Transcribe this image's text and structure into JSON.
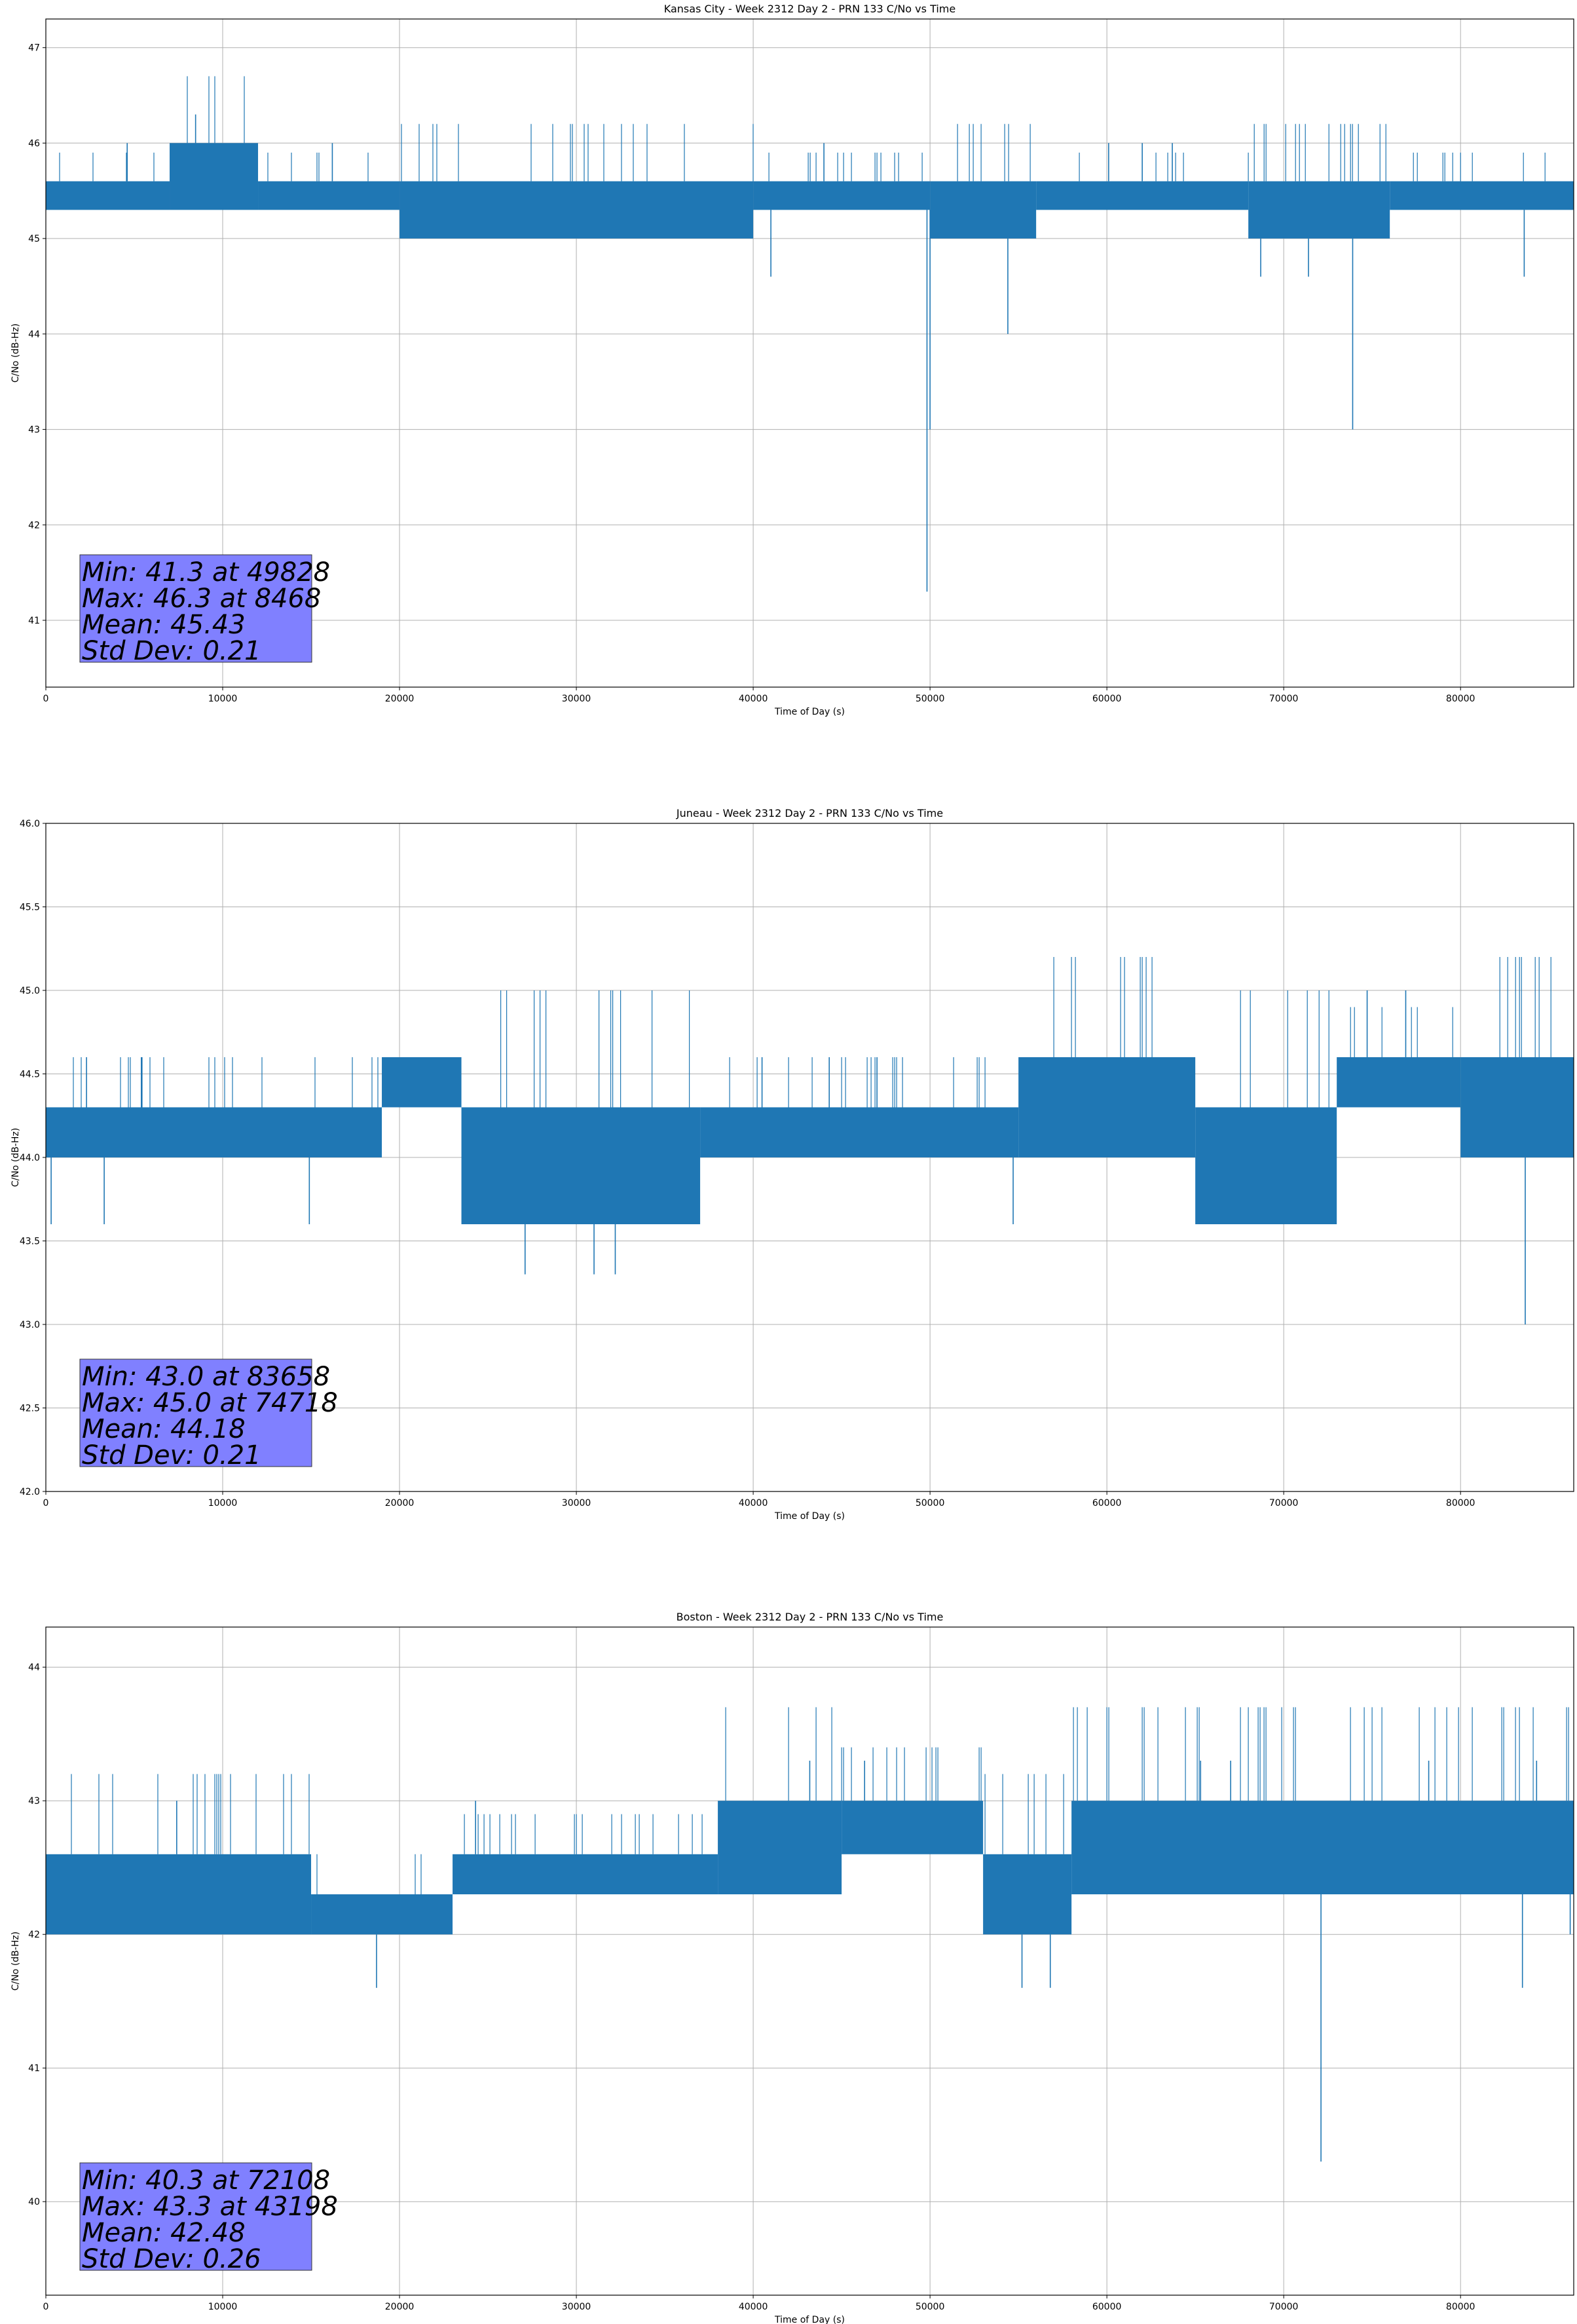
{
  "chart_data": [
    {
      "type": "line",
      "title": "Kansas City - Week 2312 Day 2 - PRN 133 C/No vs Time",
      "xlabel": "Time of Day (s)",
      "ylabel": "C/No (dB-Hz)",
      "xlim": [
        0,
        86400
      ],
      "ylim": [
        40.3,
        47.3
      ],
      "xticks": [
        0,
        10000,
        20000,
        30000,
        40000,
        50000,
        60000,
        70000,
        80000
      ],
      "yticks": [
        41,
        42,
        43,
        44,
        45,
        46,
        47
      ],
      "ytick_format": "0",
      "grid": true,
      "series_color": "#1f77b4",
      "bands": [
        {
          "x": [
            0,
            7000
          ],
          "low": 45.3,
          "high": 45.6
        },
        {
          "x": [
            7000,
            12000
          ],
          "low": 45.3,
          "high": 46.0
        },
        {
          "x": [
            12000,
            20000
          ],
          "low": 45.3,
          "high": 45.6
        },
        {
          "x": [
            20000,
            40000
          ],
          "low": 45.0,
          "high": 45.6
        },
        {
          "x": [
            40000,
            50000
          ],
          "low": 45.3,
          "high": 45.6
        },
        {
          "x": [
            50000,
            56000
          ],
          "low": 45.0,
          "high": 45.6
        },
        {
          "x": [
            56000,
            68000
          ],
          "low": 45.3,
          "high": 45.6
        },
        {
          "x": [
            68000,
            76000
          ],
          "low": 45.0,
          "high": 45.6
        },
        {
          "x": [
            76000,
            86400
          ],
          "low": 45.3,
          "high": 45.6
        }
      ],
      "spikes": [
        {
          "x": 8468,
          "y": 46.3
        },
        {
          "x": 49828,
          "y": 41.3
        },
        {
          "x": 50000,
          "y": 43.0
        },
        {
          "x": 73900,
          "y": 43.0
        },
        {
          "x": 54400,
          "y": 44.0
        },
        {
          "x": 41000,
          "y": 44.6
        },
        {
          "x": 68700,
          "y": 44.6
        },
        {
          "x": 71400,
          "y": 44.6
        },
        {
          "x": 83600,
          "y": 44.6
        },
        {
          "x": 44000,
          "y": 46.0
        },
        {
          "x": 60100,
          "y": 46.0
        },
        {
          "x": 62000,
          "y": 46.0
        },
        {
          "x": 63700,
          "y": 46.0
        },
        {
          "x": 4600,
          "y": 46.0
        },
        {
          "x": 16200,
          "y": 46.0
        }
      ],
      "stats": [
        "Min: 41.3 at 49828",
        "Max: 46.3 at 8468",
        "Mean: 45.43",
        "Std Dev: 0.21"
      ]
    },
    {
      "type": "line",
      "title": "Juneau - Week 2312 Day 2 - PRN 133 C/No vs Time",
      "xlabel": "Time of Day (s)",
      "ylabel": "C/No (dB-Hz)",
      "xlim": [
        0,
        86400
      ],
      "ylim": [
        42.0,
        46.0
      ],
      "xticks": [
        0,
        10000,
        20000,
        30000,
        40000,
        50000,
        60000,
        70000,
        80000
      ],
      "yticks": [
        42.0,
        42.5,
        43.0,
        43.5,
        44.0,
        44.5,
        45.0,
        45.5,
        46.0
      ],
      "ytick_format": "1",
      "grid": true,
      "series_color": "#1f77b4",
      "bands": [
        {
          "x": [
            0,
            19000
          ],
          "low": 44.0,
          "high": 44.3
        },
        {
          "x": [
            19000,
            23500
          ],
          "low": 44.3,
          "high": 44.6
        },
        {
          "x": [
            23500,
            37000
          ],
          "low": 43.6,
          "high": 44.3
        },
        {
          "x": [
            37000,
            55000
          ],
          "low": 44.0,
          "high": 44.3
        },
        {
          "x": [
            55000,
            65000
          ],
          "low": 44.0,
          "high": 44.6
        },
        {
          "x": [
            65000,
            73000
          ],
          "low": 43.6,
          "high": 44.3
        },
        {
          "x": [
            73000,
            80000
          ],
          "low": 44.3,
          "high": 44.6
        },
        {
          "x": [
            80000,
            86400
          ],
          "low": 44.0,
          "high": 44.6
        }
      ],
      "spikes": [
        {
          "x": 83658,
          "y": 43.0
        },
        {
          "x": 74718,
          "y": 45.0
        },
        {
          "x": 76900,
          "y": 45.0
        },
        {
          "x": 27100,
          "y": 43.3
        },
        {
          "x": 31000,
          "y": 43.3
        },
        {
          "x": 32200,
          "y": 43.3
        },
        {
          "x": 300,
          "y": 43.6
        },
        {
          "x": 3300,
          "y": 43.6
        },
        {
          "x": 14900,
          "y": 43.6
        },
        {
          "x": 54700,
          "y": 43.6
        },
        {
          "x": 2300,
          "y": 44.6
        },
        {
          "x": 5400,
          "y": 44.6
        },
        {
          "x": 40500,
          "y": 44.6
        },
        {
          "x": 44300,
          "y": 44.6
        },
        {
          "x": 47000,
          "y": 44.6
        }
      ],
      "stats": [
        "Min: 43.0 at 83658",
        "Max: 45.0 at 74718",
        "Mean: 44.18",
        "Std Dev: 0.21"
      ]
    },
    {
      "type": "line",
      "title": "Boston - Week 2312 Day 2 - PRN 133 C/No vs Time",
      "xlabel": "Time of Day (s)",
      "ylabel": "C/No (dB-Hz)",
      "xlim": [
        0,
        86400
      ],
      "ylim": [
        39.3,
        44.3
      ],
      "xticks": [
        0,
        10000,
        20000,
        30000,
        40000,
        50000,
        60000,
        70000,
        80000
      ],
      "yticks": [
        40,
        41,
        42,
        43,
        44
      ],
      "ytick_format": "0",
      "grid": true,
      "series_color": "#1f77b4",
      "bands": [
        {
          "x": [
            0,
            15000
          ],
          "low": 42.0,
          "high": 42.6
        },
        {
          "x": [
            15000,
            23000
          ],
          "low": 42.0,
          "high": 42.3
        },
        {
          "x": [
            23000,
            38000
          ],
          "low": 42.3,
          "high": 42.6
        },
        {
          "x": [
            38000,
            45000
          ],
          "low": 42.3,
          "high": 43.0
        },
        {
          "x": 45000,
          "low": 42.6,
          "high": 43.0
        },
        {
          "x": [
            45000,
            53000
          ],
          "low": 42.6,
          "high": 43.0
        },
        {
          "x": [
            53000,
            58000
          ],
          "low": 42.0,
          "high": 42.6
        },
        {
          "x": [
            58000,
            86400
          ],
          "low": 42.3,
          "high": 43.0
        }
      ],
      "spikes": [
        {
          "x": 72108,
          "y": 40.3
        },
        {
          "x": 43198,
          "y": 43.3
        },
        {
          "x": 18700,
          "y": 41.6
        },
        {
          "x": 55200,
          "y": 41.6
        },
        {
          "x": 56800,
          "y": 41.6
        },
        {
          "x": 83500,
          "y": 41.6
        },
        {
          "x": 7400,
          "y": 43.0
        },
        {
          "x": 24300,
          "y": 43.0
        },
        {
          "x": 46300,
          "y": 43.3
        },
        {
          "x": 65300,
          "y": 43.3
        },
        {
          "x": 67000,
          "y": 43.3
        },
        {
          "x": 78200,
          "y": 43.3
        },
        {
          "x": 84300,
          "y": 43.3
        },
        {
          "x": 86200,
          "y": 42.0
        }
      ],
      "stats": [
        "Min: 40.3 at 72108",
        "Max: 43.3 at 43198",
        "Mean: 42.48",
        "Std Dev: 0.26"
      ]
    }
  ]
}
